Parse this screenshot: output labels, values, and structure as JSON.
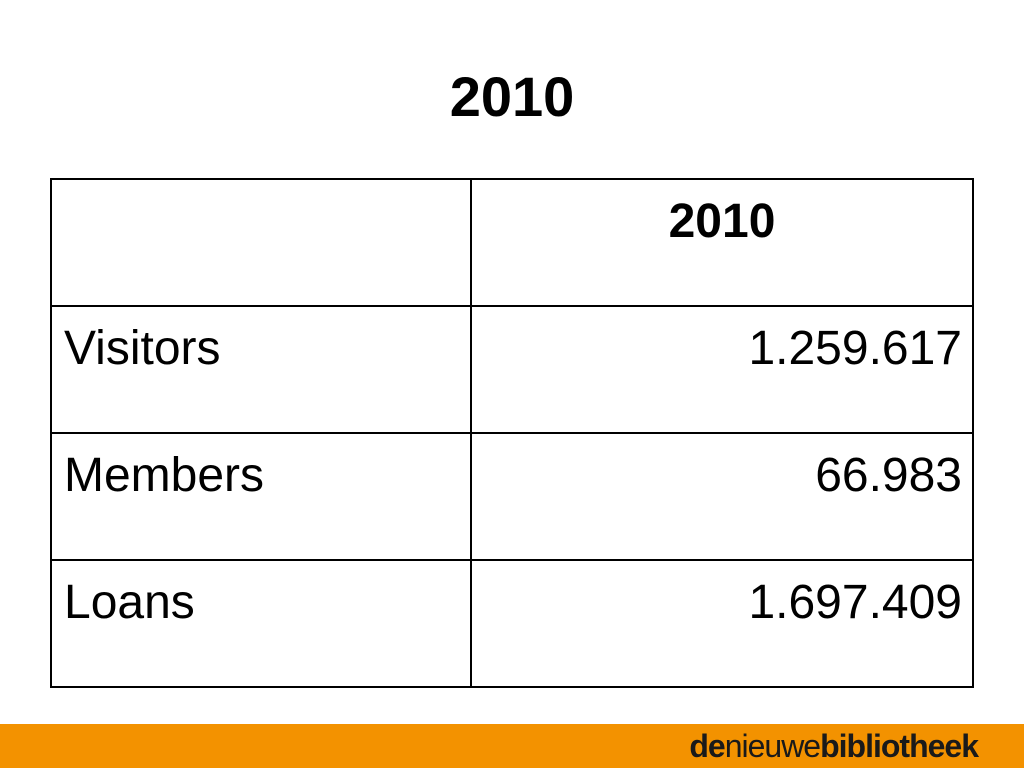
{
  "title": "2010",
  "table": {
    "header": [
      "",
      "2010"
    ],
    "rows": [
      {
        "label": "Visitors",
        "value": "1.259.617"
      },
      {
        "label": "Members",
        "value": "66.983"
      },
      {
        "label": "Loans",
        "value": "1.697.409"
      }
    ]
  },
  "logo": {
    "part1": "de",
    "part2": "nieuwe",
    "part3": "bibliotheek"
  },
  "colors": {
    "footer": "#f39200",
    "text": "#000000",
    "background": "#ffffff"
  }
}
